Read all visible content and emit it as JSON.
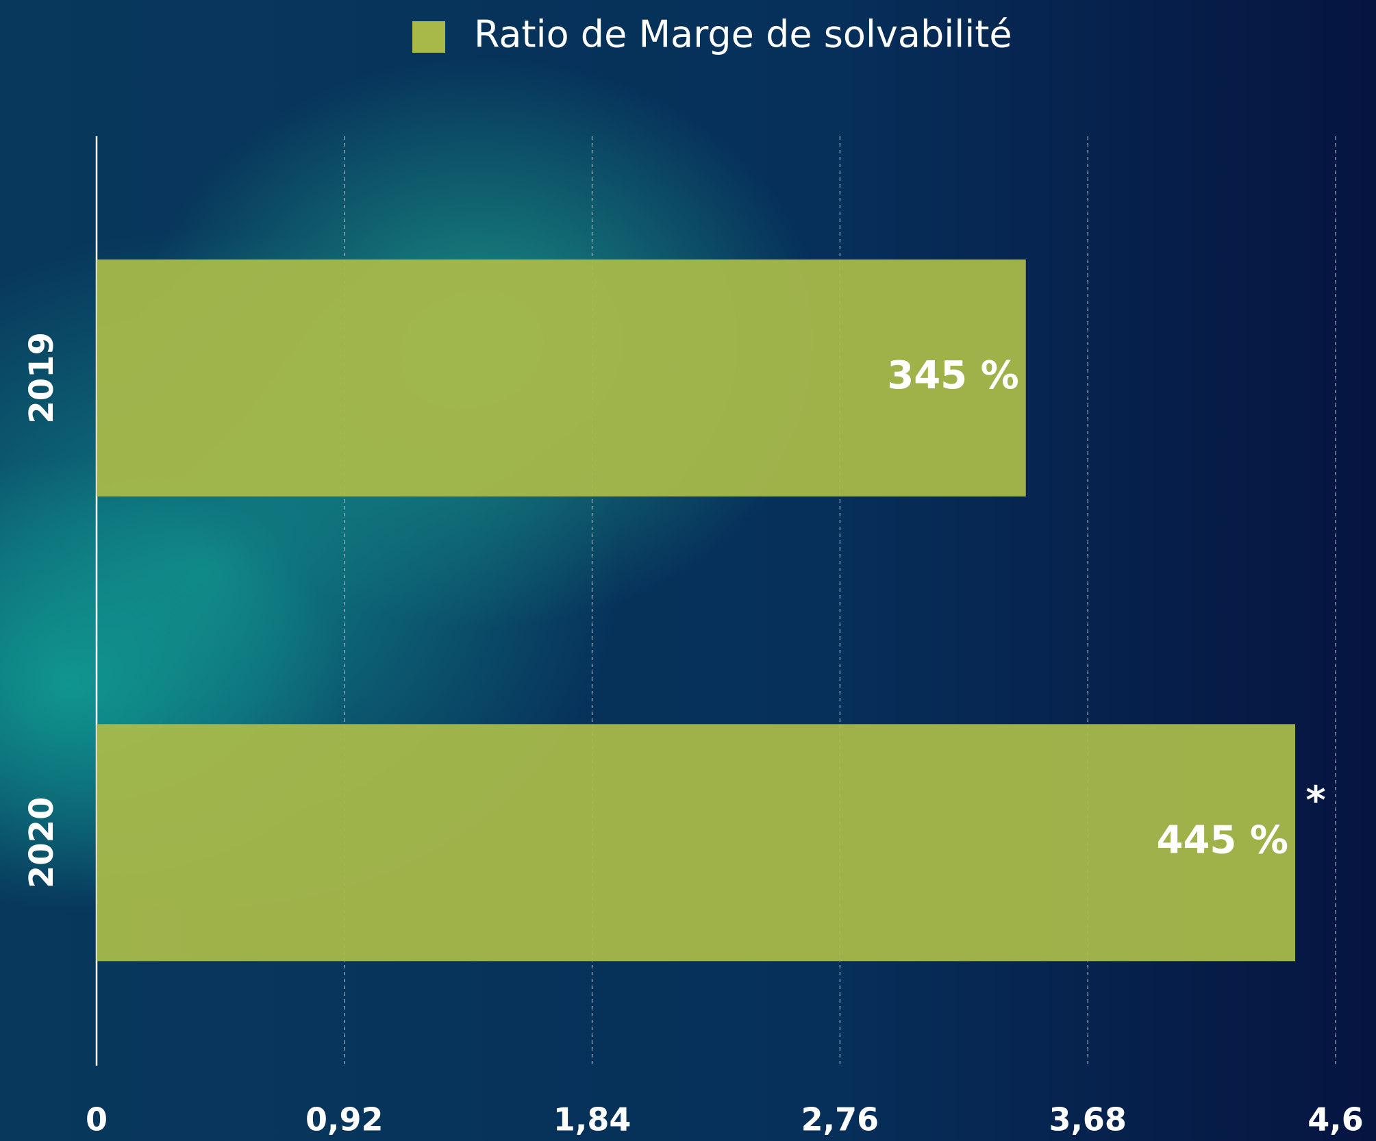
{
  "chart_data": {
    "type": "barh",
    "legend": "Ratio de Marge de solvabilité",
    "series": [
      {
        "name": "Ratio de Marge de solvabilité",
        "color": "#a8b94a",
        "values": [
          3.45,
          4.45
        ],
        "value_labels": [
          "345 %",
          "445 %"
        ]
      }
    ],
    "categories": [
      "2019",
      "2020"
    ],
    "annotation": "*",
    "xlim": [
      0,
      4.6
    ],
    "xticks": [
      0,
      {
        "value": 0.92,
        "label": "0,92"
      },
      {
        "value": 1.84,
        "label": "1,84"
      },
      {
        "value": 2.76,
        "label": "2,76"
      },
      {
        "value": 3.68,
        "label": "3,68"
      },
      {
        "value": 4.6,
        "label": "4,6"
      }
    ],
    "grid": true
  }
}
